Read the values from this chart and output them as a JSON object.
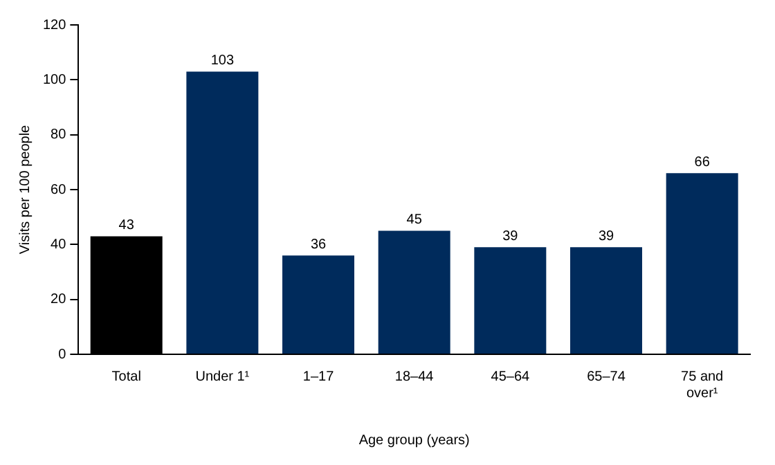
{
  "chart_data": {
    "type": "bar",
    "xlabel": "Age group (years)",
    "ylabel": "Visits per 100 people",
    "categories": [
      "Total",
      "Under 1¹",
      "1–17",
      "18–44",
      "45–64",
      "65–74",
      "75 and over¹"
    ],
    "values": [
      43,
      103,
      36,
      45,
      39,
      39,
      66
    ],
    "colors": [
      "#000000",
      "#002b5c",
      "#002b5c",
      "#002b5c",
      "#002b5c",
      "#002b5c",
      "#002b5c"
    ],
    "ylim": [
      0,
      120
    ],
    "yticks": [
      0,
      20,
      40,
      60,
      80,
      100,
      120
    ],
    "grid": false,
    "data_labels": true
  }
}
